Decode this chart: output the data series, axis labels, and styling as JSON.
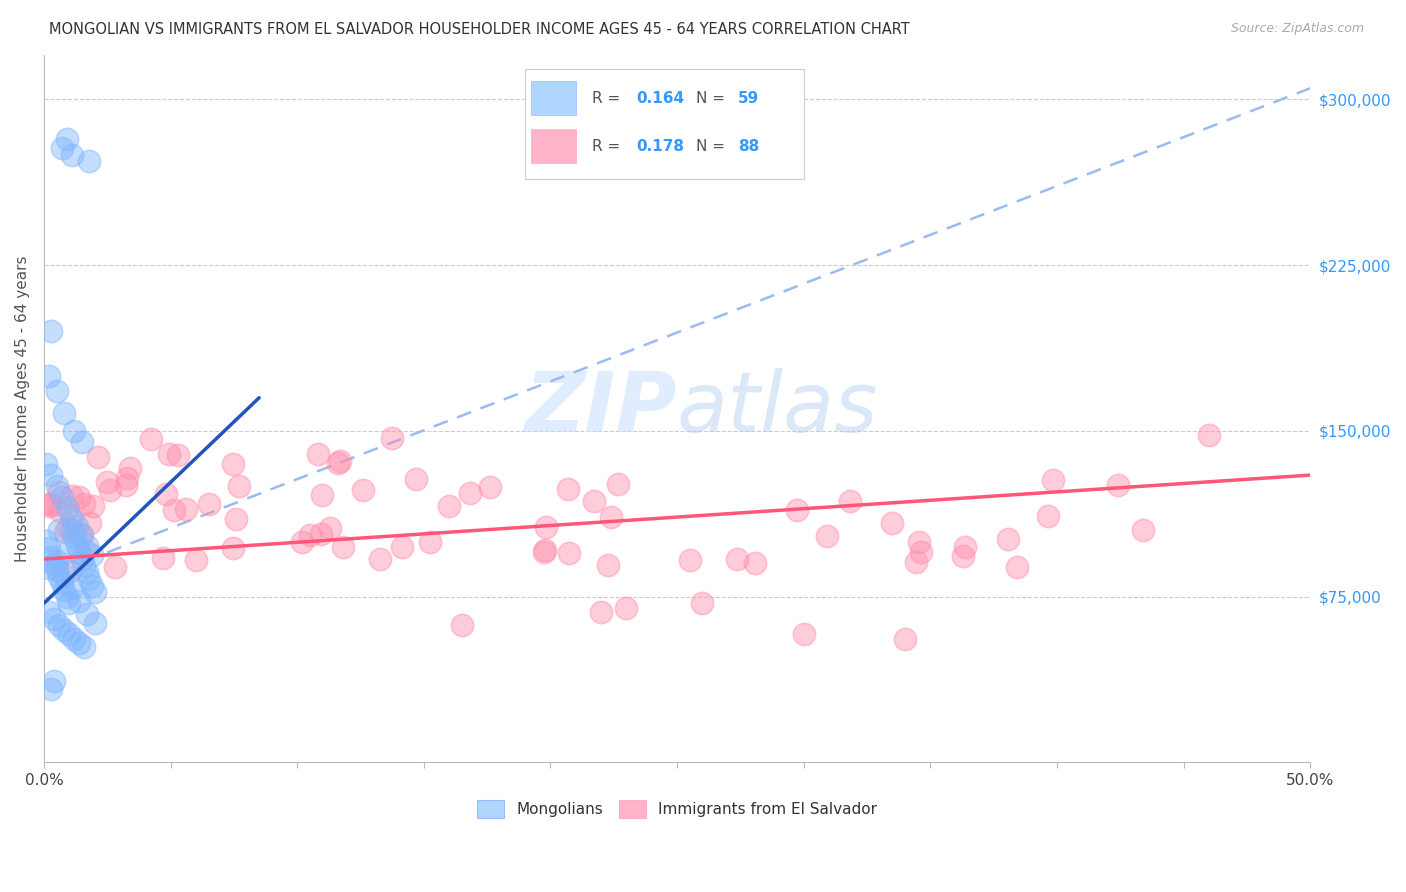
{
  "title": "MONGOLIAN VS IMMIGRANTS FROM EL SALVADOR HOUSEHOLDER INCOME AGES 45 - 64 YEARS CORRELATION CHART",
  "source": "Source: ZipAtlas.com",
  "ylabel": "Householder Income Ages 45 - 64 years",
  "x_min": 0.0,
  "x_max": 0.5,
  "y_min": 0,
  "y_max": 320000,
  "x_ticks": [
    0.0,
    0.05,
    0.1,
    0.15,
    0.2,
    0.25,
    0.3,
    0.35,
    0.4,
    0.45,
    0.5
  ],
  "x_tick_labels_shown": {
    "0.0": "0.0%",
    "0.5": "50.0%"
  },
  "y_ticks": [
    75000,
    150000,
    225000,
    300000
  ],
  "y_tick_labels": [
    "$75,000",
    "$150,000",
    "$225,000",
    "$300,000"
  ],
  "mongolian_color": "#7EB6FF",
  "salvador_color": "#FF8FAB",
  "mongolian_line_color": "#2255BB",
  "salvador_line_color": "#FF5577",
  "dashed_line_color": "#99BBEE",
  "legend_blue_label": "Mongolians",
  "legend_pink_label": "Immigrants from El Salvador",
  "mongo_line_x0": 0.0,
  "mongo_line_y0": 72000,
  "mongo_line_x1": 0.085,
  "mongo_line_y1": 165000,
  "sal_line_x0": 0.0,
  "sal_line_y0": 92000,
  "sal_line_x1": 0.5,
  "sal_line_y1": 130000,
  "dash_line_x0": 0.025,
  "dash_line_y0": 95000,
  "dash_line_x1": 0.5,
  "dash_line_y1": 305000
}
